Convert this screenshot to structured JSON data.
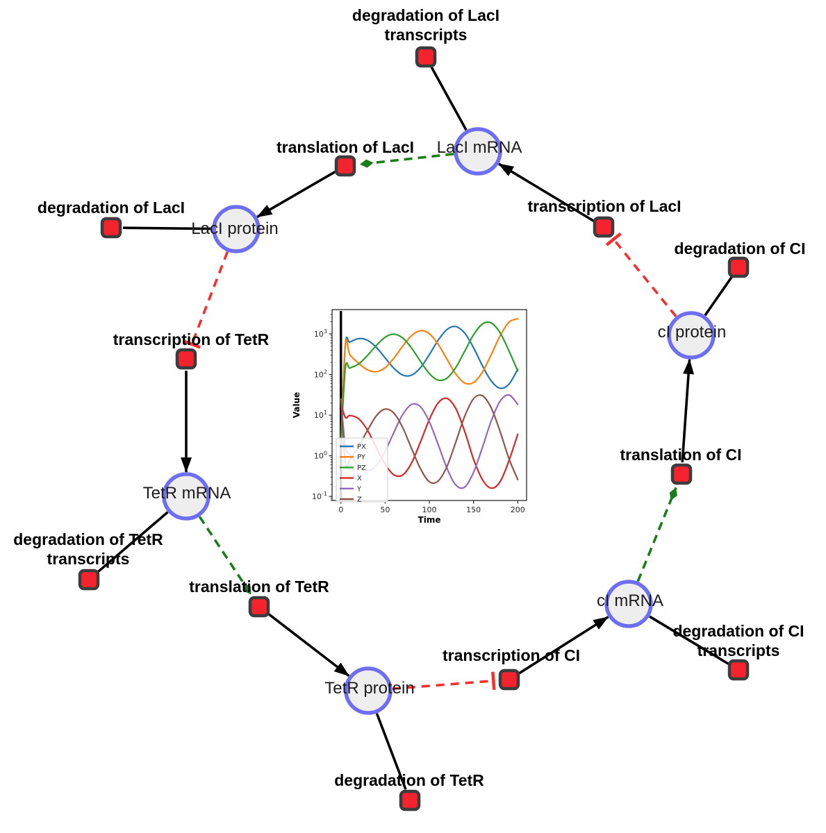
{
  "network": {
    "species": [
      {
        "id": "laci_mrna",
        "label": "LacI mRNA"
      },
      {
        "id": "laci_protein",
        "label": "LacI protein"
      },
      {
        "id": "tetr_mrna",
        "label": "TetR mRNA"
      },
      {
        "id": "tetr_protein",
        "label": "TetR protein"
      },
      {
        "id": "ci_mrna",
        "label": "cI mRNA"
      },
      {
        "id": "ci_protein",
        "label": "cI protein"
      }
    ],
    "reactions": [
      {
        "id": "deg_laci_tx",
        "lines": [
          "degradation of LacI",
          "transcripts"
        ]
      },
      {
        "id": "transl_laci",
        "lines": [
          "translation of LacI"
        ]
      },
      {
        "id": "deg_laci",
        "lines": [
          "degradation of LacI"
        ]
      },
      {
        "id": "tx_tetr",
        "lines": [
          "transcription of TetR"
        ]
      },
      {
        "id": "deg_tetr_tx",
        "lines": [
          "degradation of TetR",
          "transcripts"
        ]
      },
      {
        "id": "transl_tetr",
        "lines": [
          "translation of TetR"
        ]
      },
      {
        "id": "deg_tetr",
        "lines": [
          "degradation of TetR"
        ]
      },
      {
        "id": "tx_ci",
        "lines": [
          "transcription of CI"
        ]
      },
      {
        "id": "deg_ci_tx",
        "lines": [
          "degradation of CI",
          "transcripts"
        ]
      },
      {
        "id": "transl_ci",
        "lines": [
          "translation of CI"
        ]
      },
      {
        "id": "deg_ci",
        "lines": [
          "degradation of CI"
        ]
      },
      {
        "id": "tx_laci",
        "lines": [
          "transcription of LacI"
        ]
      }
    ],
    "edges": [
      {
        "from": "laci_mrna",
        "to": "deg_laci_tx",
        "type": "consumption"
      },
      {
        "from": "laci_mrna",
        "to": "transl_laci",
        "type": "modifier"
      },
      {
        "from": "transl_laci",
        "to": "laci_protein",
        "type": "production"
      },
      {
        "from": "laci_protein",
        "to": "deg_laci",
        "type": "consumption"
      },
      {
        "from": "laci_protein",
        "to": "tx_tetr",
        "type": "inhibition"
      },
      {
        "from": "tx_tetr",
        "to": "tetr_mrna",
        "type": "production"
      },
      {
        "from": "tetr_mrna",
        "to": "deg_tetr_tx",
        "type": "consumption"
      },
      {
        "from": "tetr_mrna",
        "to": "transl_tetr",
        "type": "modifier"
      },
      {
        "from": "transl_tetr",
        "to": "tetr_protein",
        "type": "production"
      },
      {
        "from": "tetr_protein",
        "to": "deg_tetr",
        "type": "consumption"
      },
      {
        "from": "tetr_protein",
        "to": "tx_ci",
        "type": "inhibition"
      },
      {
        "from": "tx_ci",
        "to": "ci_mrna",
        "type": "production"
      },
      {
        "from": "ci_mrna",
        "to": "deg_ci_tx",
        "type": "consumption"
      },
      {
        "from": "ci_mrna",
        "to": "transl_ci",
        "type": "modifier"
      },
      {
        "from": "transl_ci",
        "to": "ci_protein",
        "type": "production"
      },
      {
        "from": "ci_protein",
        "to": "deg_ci",
        "type": "consumption"
      },
      {
        "from": "ci_protein",
        "to": "tx_laci",
        "type": "inhibition"
      },
      {
        "from": "tx_laci",
        "to": "laci_mrna",
        "type": "production"
      }
    ],
    "colors": {
      "species_fill": "#eeeeee",
      "species_stroke": "#6e6ef2",
      "reaction_fill": "#f5232e",
      "reaction_stroke": "#3c3c3c",
      "edge_black": "#000000",
      "modifier_green": "#1a7d1a",
      "inhibition_red": "#f52e2e"
    }
  },
  "chart_data": {
    "type": "line",
    "title": "",
    "xlabel": "Time",
    "ylabel": "Value",
    "x_ticks": [
      0,
      50,
      100,
      150,
      200
    ],
    "y_scale": "log",
    "y_tick_exponents": [
      -1,
      0,
      1,
      2,
      3
    ],
    "xlim": [
      -10,
      210
    ],
    "ylim_log10": [
      -1.1,
      3.6
    ],
    "grid": false,
    "legend_position": "lower left",
    "marker_line_x": 0,
    "x": [
      0,
      5,
      10,
      20,
      30,
      40,
      50,
      60,
      70,
      80,
      90,
      100,
      110,
      120,
      130,
      140,
      150,
      160,
      170,
      180,
      190,
      200
    ],
    "series": [
      {
        "name": "PX",
        "color": "#1f77b4",
        "values": [
          2,
          524,
          628,
          769,
          698,
          469,
          258,
          142,
          97,
          97,
          148,
          310,
          701,
          1291,
          1524,
          1052,
          461,
          166,
          70,
          46,
          58,
          135
        ]
      },
      {
        "name": "PY",
        "color": "#ff7f0e",
        "values": [
          2,
          550,
          312,
          191,
          131,
          117,
          148,
          254,
          505,
          914,
          1208,
          1017,
          558,
          237,
          103,
          62,
          64,
          115,
          308,
          895,
          1950,
          2377
        ]
      },
      {
        "name": "PZ",
        "color": "#2ca02c",
        "values": [
          2,
          143,
          145,
          183,
          295,
          521,
          830,
          988,
          792,
          449,
          211,
          106,
          73,
          82,
          150,
          375,
          949,
          1758,
          1871,
          1074,
          388,
          122
        ]
      },
      {
        "name": "X",
        "color": "#d62728",
        "values": [
          20,
          8.8,
          9.8,
          8.2,
          4.3,
          1.6,
          0.62,
          0.34,
          0.34,
          0.67,
          2.2,
          7.8,
          20.1,
          25.9,
          14.5,
          4.0,
          0.83,
          0.26,
          0.16,
          0.23,
          0.75,
          3.4
        ]
      },
      {
        "name": "Y",
        "color": "#9467bd",
        "values": [
          25,
          1.7,
          1.1,
          0.57,
          0.43,
          0.57,
          1.3,
          3.8,
          10.5,
          18.4,
          16.1,
          6.9,
          1.9,
          0.49,
          0.19,
          0.17,
          0.39,
          1.6,
          7.2,
          22,
          31.5,
          18.5
        ]
      },
      {
        "name": "Z",
        "color": "#8c564b",
        "values": [
          25,
          0.64,
          0.8,
          1.7,
          4.2,
          9.6,
          14.1,
          11.2,
          4.9,
          1.5,
          0.48,
          0.23,
          0.24,
          0.55,
          2.2,
          9.4,
          25.4,
          30.3,
          15.2,
          4.0,
          0.86,
          0.26
        ]
      }
    ]
  }
}
